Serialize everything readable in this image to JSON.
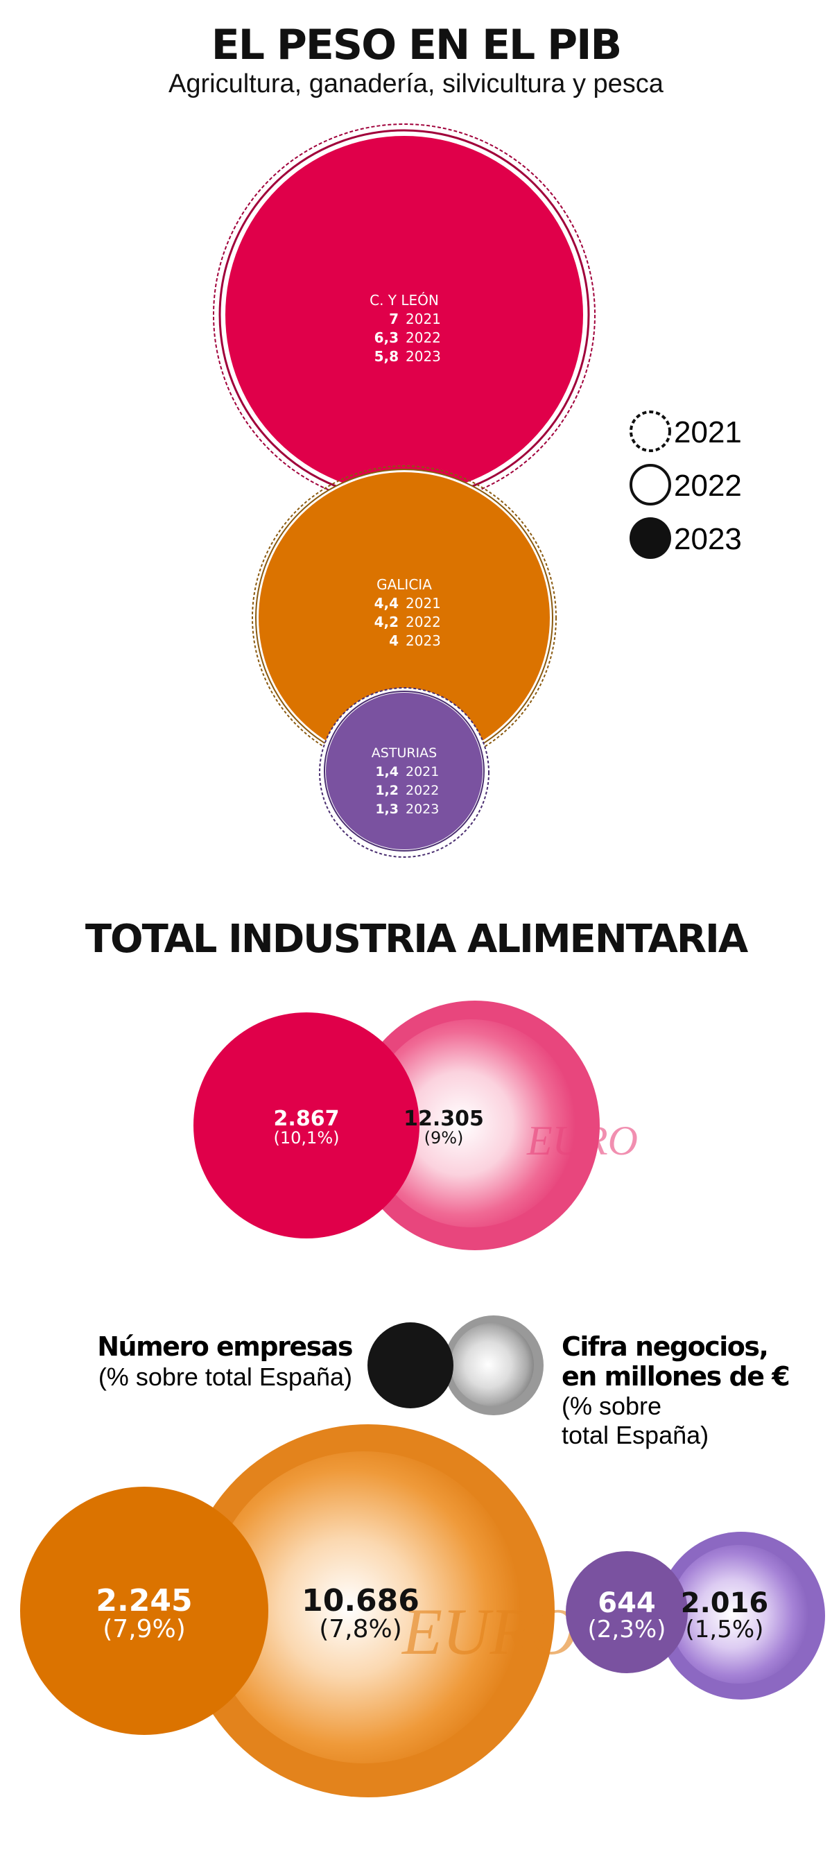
{
  "header": {
    "title": "EL PESO EN EL PIB",
    "subtitle": "Agricultura, ganadería, silvicultura y pesca"
  },
  "section2": {
    "title": "TOTAL INDUSTRIA ALIMENTARIA"
  },
  "legend_years": [
    "2021",
    "2022",
    "2023"
  ],
  "legend_info": {
    "left_title": "Número empresas",
    "left_sub": "(% sobre total España)",
    "right_title_1": "Cifra negocios,",
    "right_title_2": "en millones de €",
    "right_sub_1": "(% sobre",
    "right_sub_2": "total España)"
  },
  "colors": {
    "cyl": "#e0004a",
    "galicia": "#db7300",
    "asturias": "#7a52a0",
    "black": "#151515"
  },
  "chart_data": [
    {
      "type": "bubble",
      "title": "EL PESO EN EL PIB",
      "subtitle": "Agricultura, ganadería, silvicultura y pesca",
      "legend": [
        "2021",
        "2022",
        "2023"
      ],
      "series": [
        {
          "name": "C. Y LEÓN",
          "values": [
            {
              "year": "2021",
              "value": "7"
            },
            {
              "year": "2022",
              "value": "6,3"
            },
            {
              "year": "2023",
              "value": "5,8"
            }
          ]
        },
        {
          "name": "GALICIA",
          "values": [
            {
              "year": "2021",
              "value": "4,4"
            },
            {
              "year": "2022",
              "value": "4,2"
            },
            {
              "year": "2023",
              "value": "4"
            }
          ]
        },
        {
          "name": "ASTURIAS",
          "values": [
            {
              "year": "2021",
              "value": "1,4"
            },
            {
              "year": "2022",
              "value": "1,2"
            },
            {
              "year": "2023",
              "value": "1,3"
            }
          ]
        }
      ]
    },
    {
      "type": "bubble",
      "title": "TOTAL INDUSTRIA ALIMENTARIA",
      "series": [
        {
          "region": "cyl",
          "empresas": "2.867",
          "empresas_pct": "(10,1%)",
          "negocios": "12.305",
          "negocios_pct": "(9%)"
        },
        {
          "region": "galicia",
          "empresas": "2.245",
          "empresas_pct": "(7,9%)",
          "negocios": "10.686",
          "negocios_pct": "(7,8%)"
        },
        {
          "region": "asturias",
          "empresas": "644",
          "empresas_pct": "(2,3%)",
          "negocios": "2.016",
          "negocios_pct": "(1,5%)"
        }
      ]
    }
  ]
}
